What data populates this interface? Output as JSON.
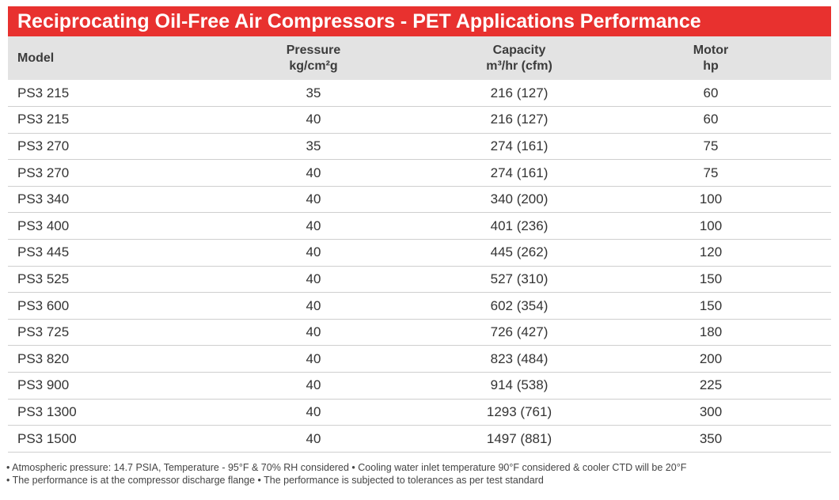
{
  "title": "Reciprocating Oil-Free Air Compressors - PET Applications Performance",
  "headers": {
    "model": "Model",
    "pressure_line1": "Pressure",
    "pressure_line2": "kg/cm²g",
    "capacity_line1": "Capacity",
    "capacity_line2": "m³/hr (cfm)",
    "motor_line1": "Motor",
    "motor_line2": "hp"
  },
  "rows": [
    {
      "model": "PS3 215",
      "pressure": "35",
      "capacity": "216 (127)",
      "motor": "60"
    },
    {
      "model": "PS3 215",
      "pressure": "40",
      "capacity": "216 (127)",
      "motor": "60"
    },
    {
      "model": "PS3 270",
      "pressure": "35",
      "capacity": "274 (161)",
      "motor": "75"
    },
    {
      "model": "PS3 270",
      "pressure": "40",
      "capacity": "274 (161)",
      "motor": "75"
    },
    {
      "model": "PS3 340",
      "pressure": "40",
      "capacity": "340 (200)",
      "motor": "100"
    },
    {
      "model": "PS3 400",
      "pressure": "40",
      "capacity": "401 (236)",
      "motor": "100"
    },
    {
      "model": "PS3 445",
      "pressure": "40",
      "capacity": "445 (262)",
      "motor": "120"
    },
    {
      "model": "PS3 525",
      "pressure": "40",
      "capacity": "527 (310)",
      "motor": "150"
    },
    {
      "model": "PS3 600",
      "pressure": "40",
      "capacity": "602 (354)",
      "motor": "150"
    },
    {
      "model": "PS3 725",
      "pressure": "40",
      "capacity": "726 (427)",
      "motor": "180"
    },
    {
      "model": "PS3 820",
      "pressure": "40",
      "capacity": "823 (484)",
      "motor": "200"
    },
    {
      "model": "PS3 900",
      "pressure": "40",
      "capacity": "914 (538)",
      "motor": "225"
    },
    {
      "model": "PS3 1300",
      "pressure": "40",
      "capacity": "1293 (761)",
      "motor": "300"
    },
    {
      "model": "PS3 1500",
      "pressure": "40",
      "capacity": "1497 (881)",
      "motor": "350"
    }
  ],
  "notes": [
    "• Atmospheric pressure: 14.7 PSIA, Temperature - 95°F & 70% RH considered • Cooling water inlet temperature 90°F considered & cooler CTD will be 20°F",
    "• The performance is at the compressor discharge flange • The performance is subjected to tolerances as per test standard"
  ],
  "colors": {
    "title_bar": "#e8312f",
    "header_bg": "#e3e3e3",
    "row_divider": "#cfcfcf"
  }
}
